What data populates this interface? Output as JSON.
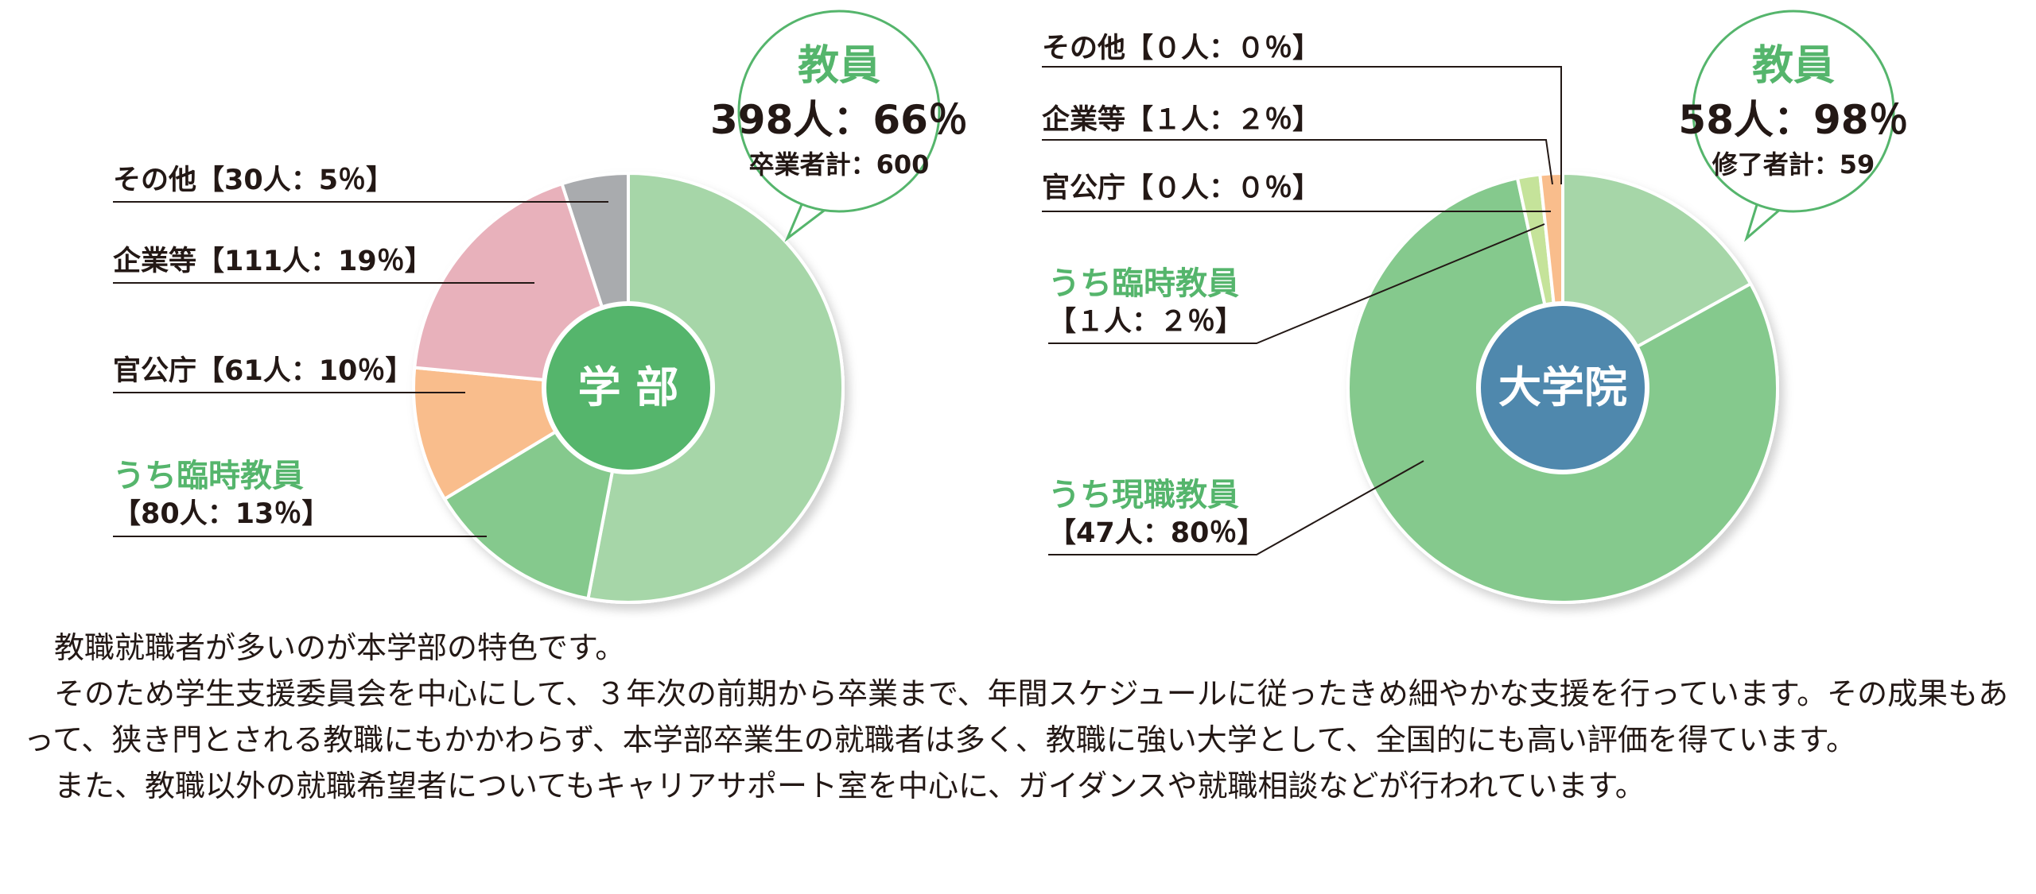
{
  "chart_data": [
    {
      "type": "pie",
      "center_label": "学 部",
      "slices": [
        {
          "label": "教員",
          "value": 318
        },
        {
          "label": "うち臨時教員",
          "value": 80
        },
        {
          "label": "官公庁",
          "value": 61
        },
        {
          "label": "企業等",
          "value": 111
        },
        {
          "label": "その他",
          "value": 30
        }
      ],
      "callouts": {
        "other": "その他【30人：5％】",
        "company": "企業等【111人：19％】",
        "government": "官公庁【61人：10％】",
        "temp_title": "うち臨時教員",
        "temp_value": "【80人：13％】"
      },
      "bubble": {
        "title": "教員",
        "main": "398人：66％",
        "sub": "卒業者計：600"
      },
      "colors": {
        "teacher": "#a6d6a8",
        "temp_teacher": "#85c98d",
        "government": "#f9bd8c",
        "company": "#e8b1bb",
        "other": "#a9abae",
        "center": "#55b56c"
      }
    },
    {
      "type": "pie",
      "center_label": "大学院",
      "slices": [
        {
          "label": "教員",
          "value": 10
        },
        {
          "label": "うち現職教員",
          "value": 47
        },
        {
          "label": "うち臨時教員",
          "value": 1
        },
        {
          "label": "官公庁",
          "value": 0
        },
        {
          "label": "企業等",
          "value": 1
        },
        {
          "label": "その他",
          "value": 0
        }
      ],
      "callouts": {
        "other": "その他【０人：０％】",
        "company": "企業等【１人：２％】",
        "government": "官公庁【０人：０％】",
        "temp_title": "うち臨時教員",
        "temp_value": "【１人：２％】",
        "current_title": "うち現職教員",
        "current_value": "【47人：80％】"
      },
      "bubble": {
        "title": "教員",
        "main": "58人：98％",
        "sub": "修了者計：59"
      },
      "colors": {
        "teacher": "#a6d6a8",
        "current_teacher": "#85c98d",
        "temp_teacher": "#c5e39a",
        "government": "#f9bd8c",
        "company": "#f9bd8c",
        "other": "#a9abae",
        "center": "#4f88ad"
      }
    }
  ],
  "description": {
    "p1": "教職就職者が多いのが本学部の特色です。",
    "p2": "そのため学生支援委員会を中心にして、３年次の前期から卒業まで、年間スケジュールに従ったきめ細やかな支援を行っています。その成果もあって、狭き門とされる教職にもかかわらず、本学部卒業生の就職者は多く、教職に強い大学として、全国的にも高い評価を得ています。",
    "p3": "また、教職以外の就職希望者についてもキャリアサポート室を中心に、ガイダンスや就職相談などが行われています。"
  }
}
